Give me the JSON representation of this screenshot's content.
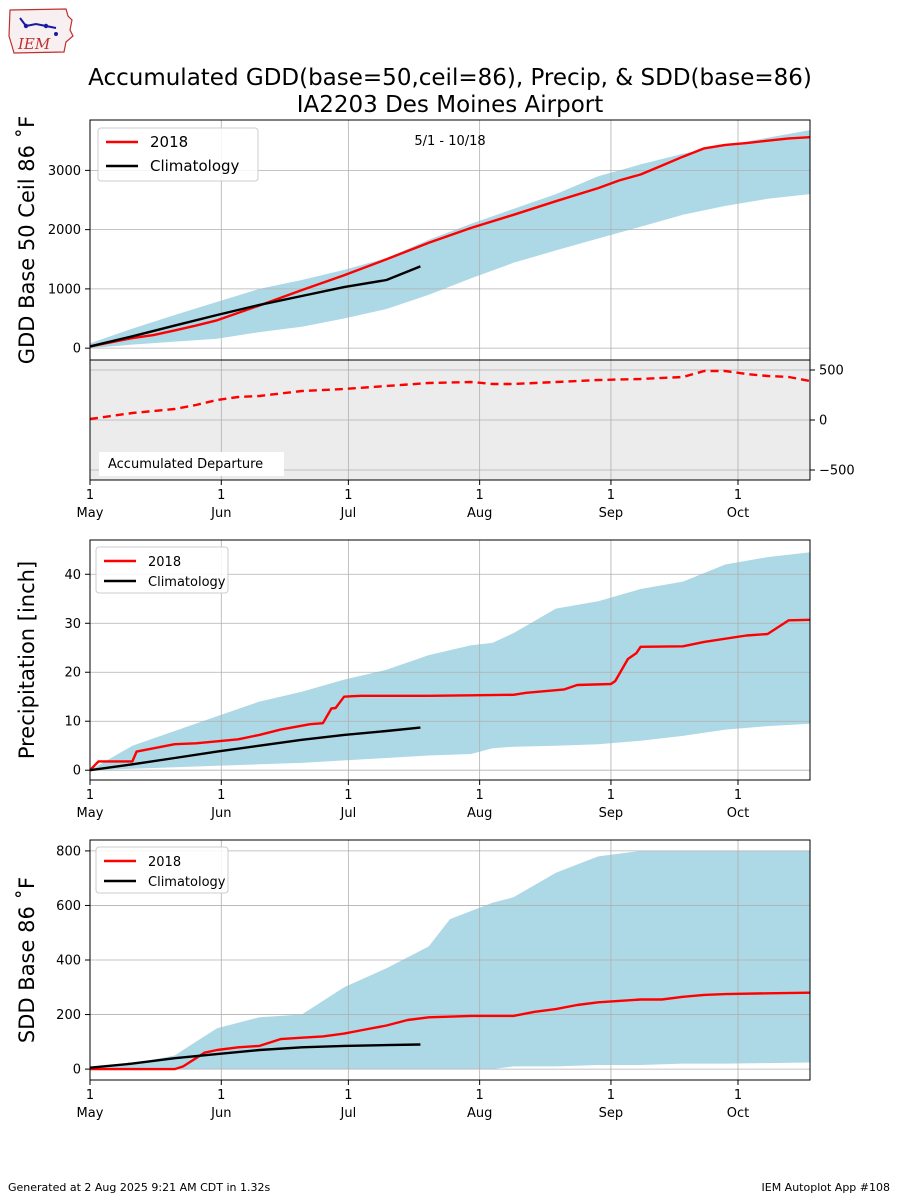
{
  "header": {
    "logo_text": "IEM",
    "title_line1": "Accumulated GDD(base=50,ceil=86), Precip, & SDD(base=86)",
    "title_line2": "IA2203 Des Moines Airport"
  },
  "footer": {
    "left": "Generated at 2 Aug 2025 9:21 AM CDT in 1.32s",
    "right": "IEM Autoplot App #108"
  },
  "colors": {
    "year": "#ff0000",
    "climatology": "#000000",
    "range_fill": "#add8e6",
    "departure_bg": "#ececec",
    "grid": "#b0b0b0"
  },
  "chart_data": [
    {
      "id": "gdd",
      "type": "line",
      "ylabel": "GDD Base 50 Ceil 86 ˚F",
      "annotation": "5/1 - 10/18",
      "ylim": [
        -200,
        3850
      ],
      "yticks": [
        0,
        1000,
        2000,
        3000
      ],
      "legend": {
        "placement": "top-left",
        "entries": [
          "2018",
          "Climatology"
        ]
      },
      "xlim_days": [
        0,
        170
      ],
      "grid": true,
      "series": [
        {
          "name": "2018",
          "color": "#ff0000",
          "x": [
            0,
            10,
            15,
            20,
            25,
            30,
            40,
            50,
            60,
            70,
            80,
            90,
            100,
            110,
            120,
            125,
            130,
            135,
            140,
            145,
            150,
            155,
            160,
            165,
            170
          ],
          "y": [
            30,
            170,
            220,
            300,
            380,
            470,
            720,
            980,
            1230,
            1500,
            1780,
            2030,
            2250,
            2480,
            2700,
            2830,
            2930,
            3080,
            3230,
            3370,
            3430,
            3460,
            3500,
            3540,
            3560
          ]
        },
        {
          "name": "Climatology",
          "color": "#000000",
          "x": [
            0,
            10,
            20,
            30,
            40,
            50,
            60,
            70,
            78
          ],
          "y": [
            30,
            200,
            380,
            560,
            730,
            880,
            1030,
            1150,
            1380
          ]
        }
      ],
      "range": {
        "x": [
          0,
          10,
          20,
          30,
          40,
          50,
          60,
          70,
          80,
          90,
          100,
          110,
          120,
          130,
          140,
          150,
          160,
          170
        ],
        "low": [
          0,
          60,
          110,
          160,
          270,
          360,
          500,
          660,
          900,
          1180,
          1440,
          1650,
          1850,
          2050,
          2250,
          2400,
          2520,
          2600
        ],
        "high": [
          80,
          330,
          560,
          780,
          1000,
          1150,
          1320,
          1520,
          1830,
          2100,
          2350,
          2600,
          2900,
          3100,
          3280,
          3420,
          3550,
          3680
        ]
      }
    },
    {
      "id": "departure",
      "type": "line",
      "label": "Accumulated Departure",
      "ylim": [
        -600,
        600
      ],
      "yticks": [
        -500,
        0,
        500
      ],
      "grid": true,
      "series": [
        {
          "name": "2018 departure",
          "color": "#ff0000",
          "dashed": true,
          "x": [
            0,
            10,
            15,
            20,
            25,
            30,
            35,
            40,
            50,
            60,
            70,
            80,
            90,
            95,
            100,
            110,
            120,
            130,
            140,
            145,
            150,
            155,
            160,
            165,
            170
          ],
          "y": [
            10,
            70,
            90,
            110,
            150,
            200,
            230,
            240,
            290,
            310,
            340,
            370,
            380,
            360,
            360,
            380,
            400,
            410,
            430,
            490,
            490,
            460,
            440,
            430,
            390
          ]
        }
      ]
    },
    {
      "id": "precip",
      "type": "line",
      "ylabel": "Precipitation [inch]",
      "ylim": [
        -2,
        47
      ],
      "yticks": [
        0,
        10,
        20,
        30,
        40
      ],
      "legend": {
        "placement": "top-left",
        "entries": [
          "2018",
          "Climatology"
        ]
      },
      "grid": true,
      "series": [
        {
          "name": "2018",
          "color": "#ff0000",
          "x": [
            0,
            2,
            10,
            11,
            20,
            25,
            30,
            35,
            40,
            45,
            52,
            55,
            57,
            58,
            60,
            62,
            64,
            80,
            90,
            100,
            103,
            112,
            115,
            123,
            124,
            127,
            129,
            130,
            140,
            145,
            155,
            160,
            165,
            170
          ],
          "y": [
            0,
            1.8,
            1.8,
            3.8,
            5.3,
            5.5,
            5.9,
            6.3,
            7.2,
            8.3,
            9.4,
            9.6,
            12.6,
            12.7,
            15,
            15.1,
            15.2,
            15.2,
            15.3,
            15.4,
            15.8,
            16.5,
            17.4,
            17.6,
            18.2,
            22.7,
            23.9,
            25.2,
            25.3,
            26.2,
            27.5,
            27.8,
            30.6,
            30.7
          ]
        },
        {
          "name": "Climatology",
          "color": "#000000",
          "x": [
            0,
            10,
            20,
            30,
            40,
            50,
            60,
            70,
            78
          ],
          "y": [
            0,
            1.2,
            2.5,
            3.8,
            5.0,
            6.2,
            7.2,
            8.0,
            8.7
          ]
        }
      ],
      "range": {
        "x": [
          0,
          10,
          20,
          30,
          40,
          50,
          60,
          70,
          80,
          90,
          95,
          100,
          110,
          120,
          130,
          140,
          150,
          160,
          170
        ],
        "low": [
          0,
          0.3,
          0.6,
          0.9,
          1.2,
          1.5,
          2.0,
          2.5,
          3.0,
          3.3,
          4.5,
          4.8,
          5.0,
          5.3,
          6.0,
          7.0,
          8.3,
          9.0,
          9.5
        ],
        "high": [
          0,
          5,
          8,
          11,
          14,
          16,
          18.5,
          20.5,
          23.5,
          25.5,
          26,
          28,
          33,
          34.5,
          37,
          38.5,
          42,
          43.5,
          44.5
        ]
      }
    },
    {
      "id": "sdd",
      "type": "line",
      "ylabel": "SDD Base 86 ˚F",
      "ylim": [
        -40,
        840
      ],
      "yticks": [
        0,
        200,
        400,
        600,
        800
      ],
      "legend": {
        "placement": "top-left",
        "entries": [
          "2018",
          "Climatology"
        ]
      },
      "grid": true,
      "series": [
        {
          "name": "2018",
          "color": "#ff0000",
          "x": [
            0,
            20,
            22,
            25,
            27,
            30,
            35,
            40,
            45,
            50,
            55,
            60,
            65,
            70,
            75,
            80,
            90,
            100,
            105,
            110,
            115,
            120,
            130,
            135,
            140,
            145,
            150,
            160,
            170
          ],
          "y": [
            0,
            0,
            10,
            40,
            60,
            70,
            80,
            85,
            110,
            115,
            120,
            130,
            145,
            160,
            180,
            190,
            195,
            195,
            210,
            220,
            235,
            245,
            255,
            255,
            265,
            272,
            275,
            278,
            280
          ]
        },
        {
          "name": "Climatology",
          "color": "#000000",
          "x": [
            0,
            10,
            20,
            30,
            40,
            50,
            60,
            70,
            78
          ],
          "y": [
            5,
            20,
            40,
            55,
            70,
            80,
            85,
            88,
            90
          ]
        }
      ],
      "range": {
        "x": [
          0,
          10,
          20,
          25,
          30,
          40,
          50,
          60,
          70,
          80,
          85,
          95,
          100,
          110,
          120,
          130,
          140,
          150,
          160,
          170
        ],
        "low": [
          0,
          0,
          0,
          0,
          0,
          0,
          0,
          0,
          0,
          0,
          0,
          0,
          10,
          10,
          15,
          15,
          20,
          20,
          22,
          24
        ],
        "high": [
          5,
          20,
          50,
          100,
          150,
          190,
          200,
          300,
          370,
          450,
          550,
          610,
          630,
          720,
          780,
          800,
          800,
          800,
          800,
          800
        ]
      }
    }
  ],
  "x_axis": {
    "ticks": [
      {
        "day": 0,
        "top": "1",
        "bottom": "May"
      },
      {
        "day": 31,
        "top": "1",
        "bottom": "Jun"
      },
      {
        "day": 61,
        "top": "1",
        "bottom": "Jul"
      },
      {
        "day": 92,
        "top": "1",
        "bottom": "Aug"
      },
      {
        "day": 123,
        "top": "1",
        "bottom": "Sep"
      },
      {
        "day": 153,
        "top": "1",
        "bottom": "Oct"
      }
    ]
  }
}
